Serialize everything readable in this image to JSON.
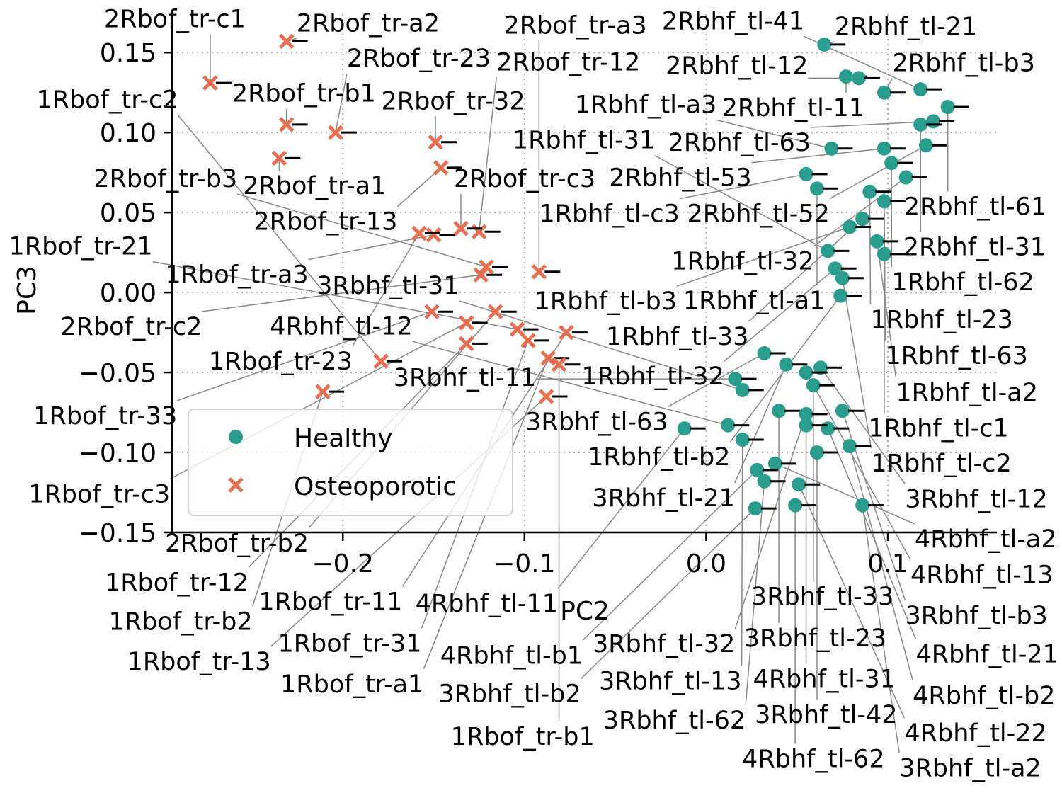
{
  "chart_data": {
    "type": "scatter",
    "title": "",
    "xlabel": "PC2",
    "ylabel": "PC3",
    "xlim": [
      -0.294,
      0.16
    ],
    "ylim": [
      -0.15,
      0.174
    ],
    "xticks": [
      -0.2,
      -0.1,
      0.0,
      0.1
    ],
    "xtick_labels": [
      "−0.2",
      "−0.1",
      "0.0",
      "0.1"
    ],
    "yticks": [
      0.15,
      0.1,
      0.05,
      0.0,
      -0.05,
      -0.1,
      -0.15
    ],
    "ytick_labels": [
      "0.15",
      "0.10",
      "0.05",
      "0.00",
      "−0.05",
      "−0.10",
      "−0.15"
    ],
    "grid": true,
    "legend_position": "lower-left",
    "series": [
      {
        "name": "Healthy",
        "marker": "circle",
        "color": "#2a9d8f",
        "points": [
          {
            "label": "2Rbhf_tl-21",
            "x": 0.065,
            "y": 0.155
          },
          {
            "label": "2Rbhf_tl-11",
            "x": 0.077,
            "y": 0.135
          },
          {
            "label": "2Rbhf_tl-12",
            "x": 0.084,
            "y": 0.134
          },
          {
            "label": "2Rbhf_tl-b3",
            "x": 0.098,
            "y": 0.125
          },
          {
            "label": "2Rbhf_tl-41",
            "x": 0.118,
            "y": 0.127
          },
          {
            "label": "2Rbhf_tl-61",
            "x": 0.133,
            "y": 0.116
          },
          {
            "label": "2Rbhf_tl-63",
            "x": 0.125,
            "y": 0.107
          },
          {
            "label": "2Rbhf_tl-31",
            "x": 0.118,
            "y": 0.105
          },
          {
            "label": "2Rbhf_tl-52",
            "x": 0.121,
            "y": 0.092
          },
          {
            "label": "2Rbhf_tl-53",
            "x": 0.098,
            "y": 0.09
          },
          {
            "label": "1Rbhf_tl-a3",
            "x": 0.069,
            "y": 0.09
          },
          {
            "label": "1Rbhf_tl-62",
            "x": 0.102,
            "y": 0.081
          },
          {
            "label": "1Rbhf_tl-32",
            "x": 0.11,
            "y": 0.072
          },
          {
            "label": "1Rbhf_tl-c3",
            "x": 0.055,
            "y": 0.074
          },
          {
            "label": "1Rbhf_tl-a1",
            "x": 0.061,
            "y": 0.065
          },
          {
            "label": "1Rbhf_tl-23",
            "x": 0.09,
            "y": 0.063
          },
          {
            "label": "1Rbhf_tl-63",
            "x": 0.098,
            "y": 0.057
          },
          {
            "label": "1Rbhf_tl-33",
            "x": 0.086,
            "y": 0.046
          },
          {
            "label": "1Rbhf_tl-b3",
            "x": 0.079,
            "y": 0.041
          },
          {
            "label": "1Rbhf_tl-a2",
            "x": 0.094,
            "y": 0.032
          },
          {
            "label": "1Rbhf_tl-c1",
            "x": 0.098,
            "y": 0.024
          },
          {
            "label": "1Rbhf_tl-31",
            "x": 0.067,
            "y": 0.026
          },
          {
            "label": "1Rbhf_tl-32",
            "x": 0.071,
            "y": 0.015
          },
          {
            "label": "1Rbhf_tl-c2",
            "x": 0.075,
            "y": 0.009
          },
          {
            "label": "1Rbhf_tl-b2",
            "x": 0.074,
            "y": -0.002
          },
          {
            "label": "3Rbhf_tl-63",
            "x": 0.032,
            "y": -0.038
          },
          {
            "label": "3Rbhf_tl-21",
            "x": 0.044,
            "y": -0.045
          },
          {
            "label": "3Rbhf_tl-12",
            "x": 0.063,
            "y": -0.047
          },
          {
            "label": "4Rbhf_tl-13",
            "x": 0.055,
            "y": -0.05
          },
          {
            "label": "3Rbhf_tl-33",
            "x": 0.059,
            "y": -0.058
          },
          {
            "label": "3Rbhf_tl-11",
            "x": 0.016,
            "y": -0.054
          },
          {
            "label": "3Rbhf_tl-31",
            "x": 0.02,
            "y": -0.061
          },
          {
            "label": "3Rbhf_tl-b3",
            "x": 0.075,
            "y": -0.074
          },
          {
            "label": "3Rbhf_tl-23",
            "x": 0.04,
            "y": -0.074
          },
          {
            "label": "3Rbhf_tl-32",
            "x": 0.055,
            "y": -0.076
          },
          {
            "label": "4Rbhf_tl-21",
            "x": 0.067,
            "y": -0.085
          },
          {
            "label": "4Rbhf_tl-11",
            "x": -0.012,
            "y": -0.085
          },
          {
            "label": "4Rbhf_tl-12",
            "x": 0.012,
            "y": -0.083
          },
          {
            "label": "4Rbhf_tl-31",
            "x": 0.055,
            "y": -0.083
          },
          {
            "label": "3Rbhf_tl-13",
            "x": 0.02,
            "y": -0.092
          },
          {
            "label": "4Rbhf_tl-b2",
            "x": 0.079,
            "y": -0.096
          },
          {
            "label": "3Rbhf_tl-42",
            "x": 0.061,
            "y": -0.1
          },
          {
            "label": "4Rbhf_tl-a2",
            "x": 0.038,
            "y": -0.107
          },
          {
            "label": "4Rbhf_tl-b1",
            "x": 0.028,
            "y": -0.111
          },
          {
            "label": "3Rbhf_tl-62",
            "x": 0.032,
            "y": -0.118
          },
          {
            "label": "4Rbhf_tl-22",
            "x": 0.051,
            "y": -0.12
          },
          {
            "label": "3Rbhf_tl-b2",
            "x": 0.027,
            "y": -0.135
          },
          {
            "label": "4Rbhf_tl-62",
            "x": 0.049,
            "y": -0.133
          },
          {
            "label": "3Rbhf_tl-a2",
            "x": 0.086,
            "y": -0.133
          }
        ]
      },
      {
        "name": "Osteoporotic",
        "marker": "x",
        "color": "#e76f51",
        "points": [
          {
            "label": "2Rbof_tr-a2",
            "x": -0.231,
            "y": 0.157
          },
          {
            "label": "2Rbof_tr-c1",
            "x": -0.273,
            "y": 0.131
          },
          {
            "label": "2Rbof_tr-b1",
            "x": -0.231,
            "y": 0.105
          },
          {
            "label": "2Rbof_tr-23",
            "x": -0.204,
            "y": 0.1
          },
          {
            "label": "2Rbof_tr-a1",
            "x": -0.235,
            "y": 0.084
          },
          {
            "label": "2Rbof_tr-32",
            "x": -0.149,
            "y": 0.094
          },
          {
            "label": "2Rbof_tr-13",
            "x": -0.146,
            "y": 0.078
          },
          {
            "label": "2Rbof_tr-12",
            "x": -0.125,
            "y": 0.038
          },
          {
            "label": "2Rbof_tr-c3",
            "x": -0.135,
            "y": 0.04
          },
          {
            "label": "1Rbof_tr-a3",
            "x": -0.15,
            "y": 0.036
          },
          {
            "label": "1Rbof_tr-23",
            "x": -0.158,
            "y": 0.037
          },
          {
            "label": "2Rbof_tr-b3",
            "x": -0.121,
            "y": 0.016
          },
          {
            "label": "2Rbof_tr-c2",
            "x": -0.124,
            "y": 0.011
          },
          {
            "label": "2Rbof_tr-a3",
            "x": -0.092,
            "y": 0.013
          },
          {
            "label": "1Rbof_tr-33",
            "x": -0.151,
            "y": -0.012
          },
          {
            "label": "2Rbof_tr-b2",
            "x": -0.116,
            "y": -0.012
          },
          {
            "label": "1Rbof_tr-c3",
            "x": -0.132,
            "y": -0.019
          },
          {
            "label": "1Rbof_tr-21",
            "x": -0.104,
            "y": -0.023
          },
          {
            "label": "1Rbof_tr-11",
            "x": -0.077,
            "y": -0.025
          },
          {
            "label": "1Rbof_tr-12",
            "x": -0.132,
            "y": -0.032
          },
          {
            "label": "1Rbof_tr-31",
            "x": -0.098,
            "y": -0.03
          },
          {
            "label": "1Rbof_tr-c2",
            "x": -0.179,
            "y": -0.043
          },
          {
            "label": "1Rbof_tr-b2",
            "x": -0.211,
            "y": -0.062
          },
          {
            "label": "1Rbof_tr-a1",
            "x": -0.087,
            "y": -0.041
          },
          {
            "label": "1Rbof_tr-b1",
            "x": -0.081,
            "y": -0.045
          },
          {
            "label": "1Rbof_tr-13",
            "x": -0.088,
            "y": -0.065
          }
        ]
      }
    ]
  }
}
